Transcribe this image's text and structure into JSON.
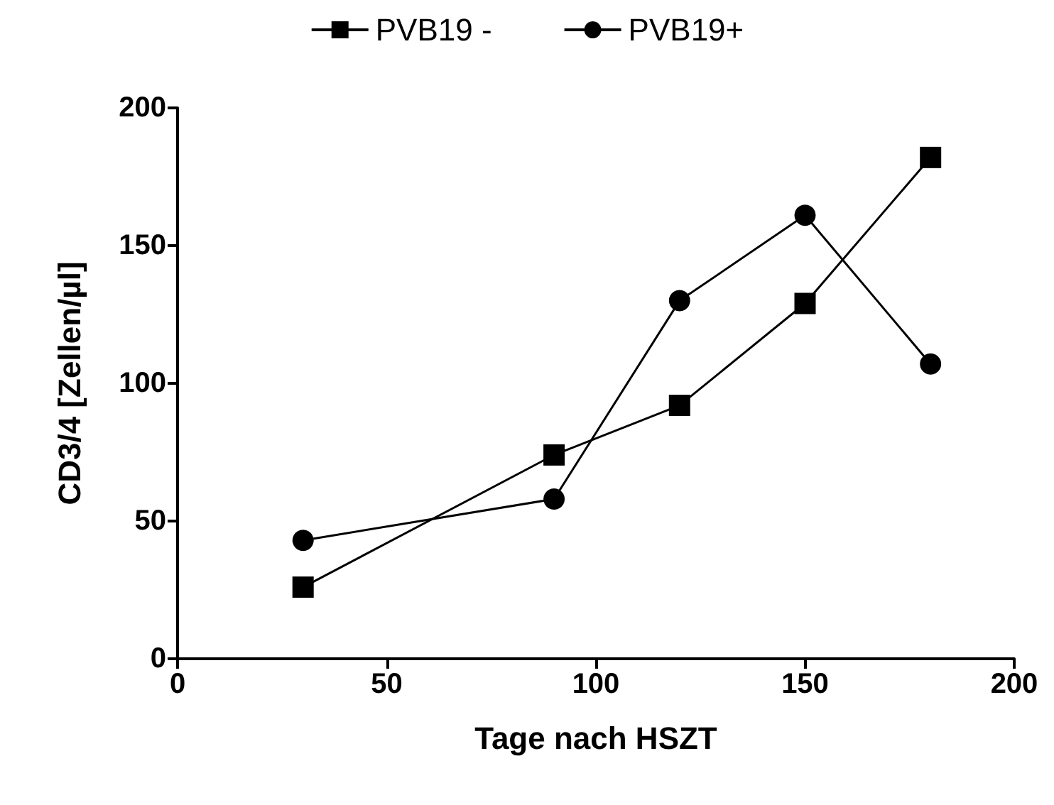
{
  "chart_data": {
    "type": "line",
    "xlabel": "Tage nach HSZT",
    "ylabel": "CD3/4 [Zellen/µl]",
    "xlim": [
      0,
      200
    ],
    "xticks": [
      0,
      50,
      100,
      150,
      200
    ],
    "ylim": [
      0,
      200
    ],
    "yticks": [
      0,
      50,
      100,
      150,
      200
    ],
    "x": [
      30,
      90,
      120,
      150,
      180
    ],
    "grid": false,
    "legend": "top",
    "line_style": "solid",
    "series": [
      {
        "name": "PVB19 -",
        "color": "#000000",
        "marker": "square",
        "values": [
          26,
          74,
          92,
          129,
          182
        ]
      },
      {
        "name": "PVB19+",
        "color": "#000000",
        "marker": "circle",
        "values": [
          43,
          58,
          130,
          161,
          107
        ]
      }
    ]
  }
}
